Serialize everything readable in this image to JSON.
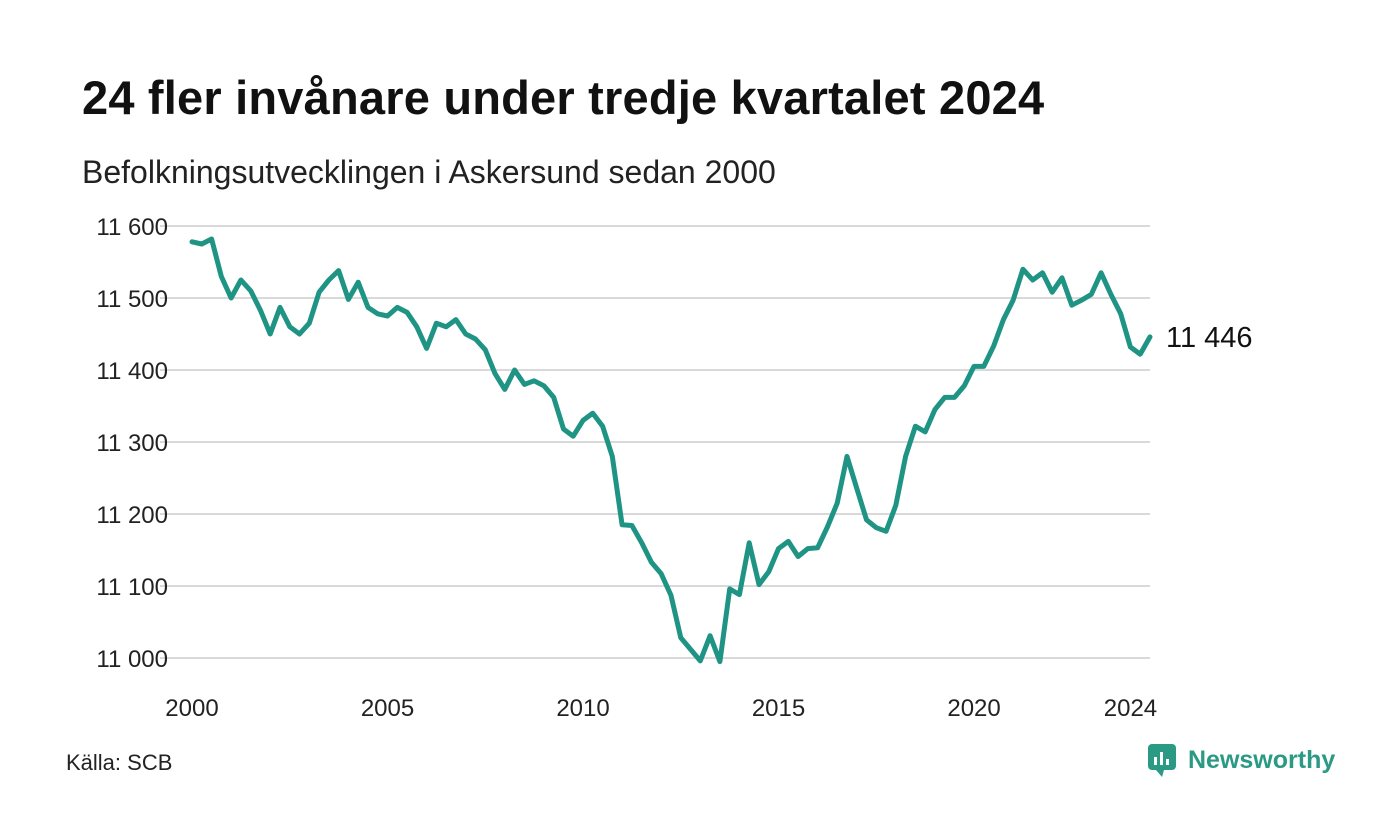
{
  "header": {
    "title": "24 fler invånare under tredje kvartalet 2024",
    "subtitle": "Befolkningsutvecklingen i Askersund sedan 2000"
  },
  "footer": {
    "source": "Källa: SCB",
    "brand": "Newsworthy"
  },
  "colors": {
    "line": "#1f9484",
    "grid": "#d9d9d9",
    "text": "#111111",
    "brand": "#2a9a84"
  },
  "chart_data": {
    "type": "line",
    "title": "24 fler invånare under tredje kvartalet 2024",
    "subtitle": "Befolkningsutvecklingen i Askersund sedan 2000",
    "xlabel": "",
    "ylabel": "",
    "xlim": [
      2000,
      2024.5
    ],
    "ylim": [
      11000,
      11600
    ],
    "x_ticks": [
      2000,
      2005,
      2010,
      2015,
      2020,
      2024
    ],
    "y_ticks": [
      11000,
      11100,
      11200,
      11300,
      11400,
      11500,
      11600
    ],
    "y_tick_labels": [
      "11 000",
      "11 100",
      "11 200",
      "11 300",
      "11 400",
      "11 500",
      "11 600"
    ],
    "grid": true,
    "end_label": "11 446",
    "x": [
      2000.0,
      2000.25,
      2000.5,
      2000.75,
      2001.0,
      2001.25,
      2001.5,
      2001.75,
      2002.0,
      2002.25,
      2002.5,
      2002.75,
      2003.0,
      2003.25,
      2003.5,
      2003.75,
      2004.0,
      2004.25,
      2004.5,
      2004.75,
      2005.0,
      2005.25,
      2005.5,
      2005.75,
      2006.0,
      2006.25,
      2006.5,
      2006.75,
      2007.0,
      2007.25,
      2007.5,
      2007.75,
      2008.0,
      2008.25,
      2008.5,
      2008.75,
      2009.0,
      2009.25,
      2009.5,
      2009.75,
      2010.0,
      2010.25,
      2010.5,
      2010.75,
      2011.0,
      2011.25,
      2011.5,
      2011.75,
      2012.0,
      2012.25,
      2012.5,
      2012.75,
      2013.0,
      2013.25,
      2013.5,
      2013.75,
      2014.0,
      2014.25,
      2014.5,
      2014.75,
      2015.0,
      2015.25,
      2015.5,
      2015.75,
      2016.0,
      2016.25,
      2016.5,
      2016.75,
      2017.0,
      2017.25,
      2017.5,
      2017.75,
      2018.0,
      2018.25,
      2018.5,
      2018.75,
      2019.0,
      2019.25,
      2019.5,
      2019.75,
      2020.0,
      2020.25,
      2020.5,
      2020.75,
      2021.0,
      2021.25,
      2021.5,
      2021.75,
      2022.0,
      2022.25,
      2022.5,
      2022.75,
      2023.0,
      2023.25,
      2023.5,
      2023.75,
      2024.0,
      2024.25,
      2024.5
    ],
    "series": [
      {
        "values": [
          11578,
          11575,
          11582,
          11530,
          11500,
          11525,
          11510,
          11483,
          11450,
          11487,
          11460,
          11450,
          11465,
          11508,
          11525,
          11538,
          11498,
          11522,
          11487,
          11478,
          11475,
          11487,
          11480,
          11460,
          11430,
          11465,
          11460,
          11470,
          11450,
          11443,
          11428,
          11395,
          11373,
          11400,
          11380,
          11385,
          11378,
          11362,
          11318,
          11308,
          11330,
          11340,
          11322,
          11280,
          11185,
          11184,
          11160,
          11133,
          11117,
          11087,
          11028,
          11012,
          10996,
          11031,
          10995,
          11096,
          11088,
          11160,
          11102,
          11120,
          11152,
          11162,
          11141,
          11152,
          11153,
          11182,
          11215,
          11280,
          11236,
          11192,
          11181,
          11176,
          11212,
          11280,
          11322,
          11314,
          11345,
          11362,
          11362,
          11378,
          11405,
          11405,
          11433,
          11470,
          11497,
          11540,
          11525,
          11535,
          11508,
          11528,
          11490,
          11497,
          11505,
          11535,
          11505,
          11478,
          11432,
          11422,
          11446
        ]
      }
    ]
  }
}
